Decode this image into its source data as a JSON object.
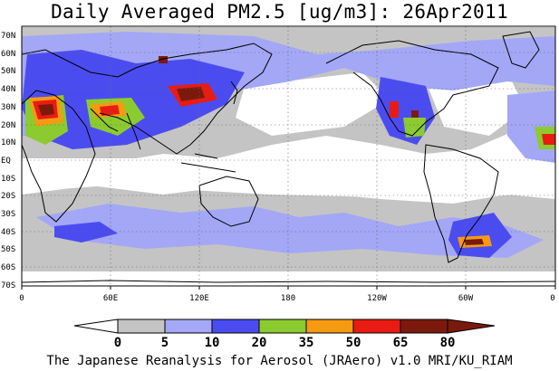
{
  "title": "Daily Averaged PM2.5 [ug/m3]: 26Apr2011",
  "credit": "The Japanese Reanalysis for Aerosol (JRAero) v1.0 MRI/KU_RIAM",
  "map": {
    "lon_range": [
      0,
      360
    ],
    "lat_range": [
      -75,
      75
    ],
    "lat_ticks": [
      "70N",
      "60N",
      "50N",
      "40N",
      "30N",
      "20N",
      "10N",
      "EQ",
      "10S",
      "20S",
      "30S",
      "40S",
      "50S",
      "60S",
      "70S"
    ],
    "lon_ticks": [
      "0",
      "60E",
      "120E",
      "180",
      "120W",
      "60W",
      "0"
    ],
    "gridlines": "dotted"
  },
  "colorbar": {
    "labels": [
      "0",
      "5",
      "10",
      "20",
      "35",
      "50",
      "65",
      "80"
    ],
    "colors": [
      "#ffffff",
      "#c4c4c4",
      "#a3a7f6",
      "#4b4cf0",
      "#8ccb2f",
      "#f59a12",
      "#e81c12",
      "#7b1a0c"
    ]
  },
  "colors": {
    "c5": "#c4c4c4",
    "c10": "#a3a7f6",
    "c20": "#4b4cf0",
    "c35": "#8ccb2f",
    "c50": "#f59a12",
    "c65": "#e81c12",
    "c80": "#7b1a0c"
  }
}
